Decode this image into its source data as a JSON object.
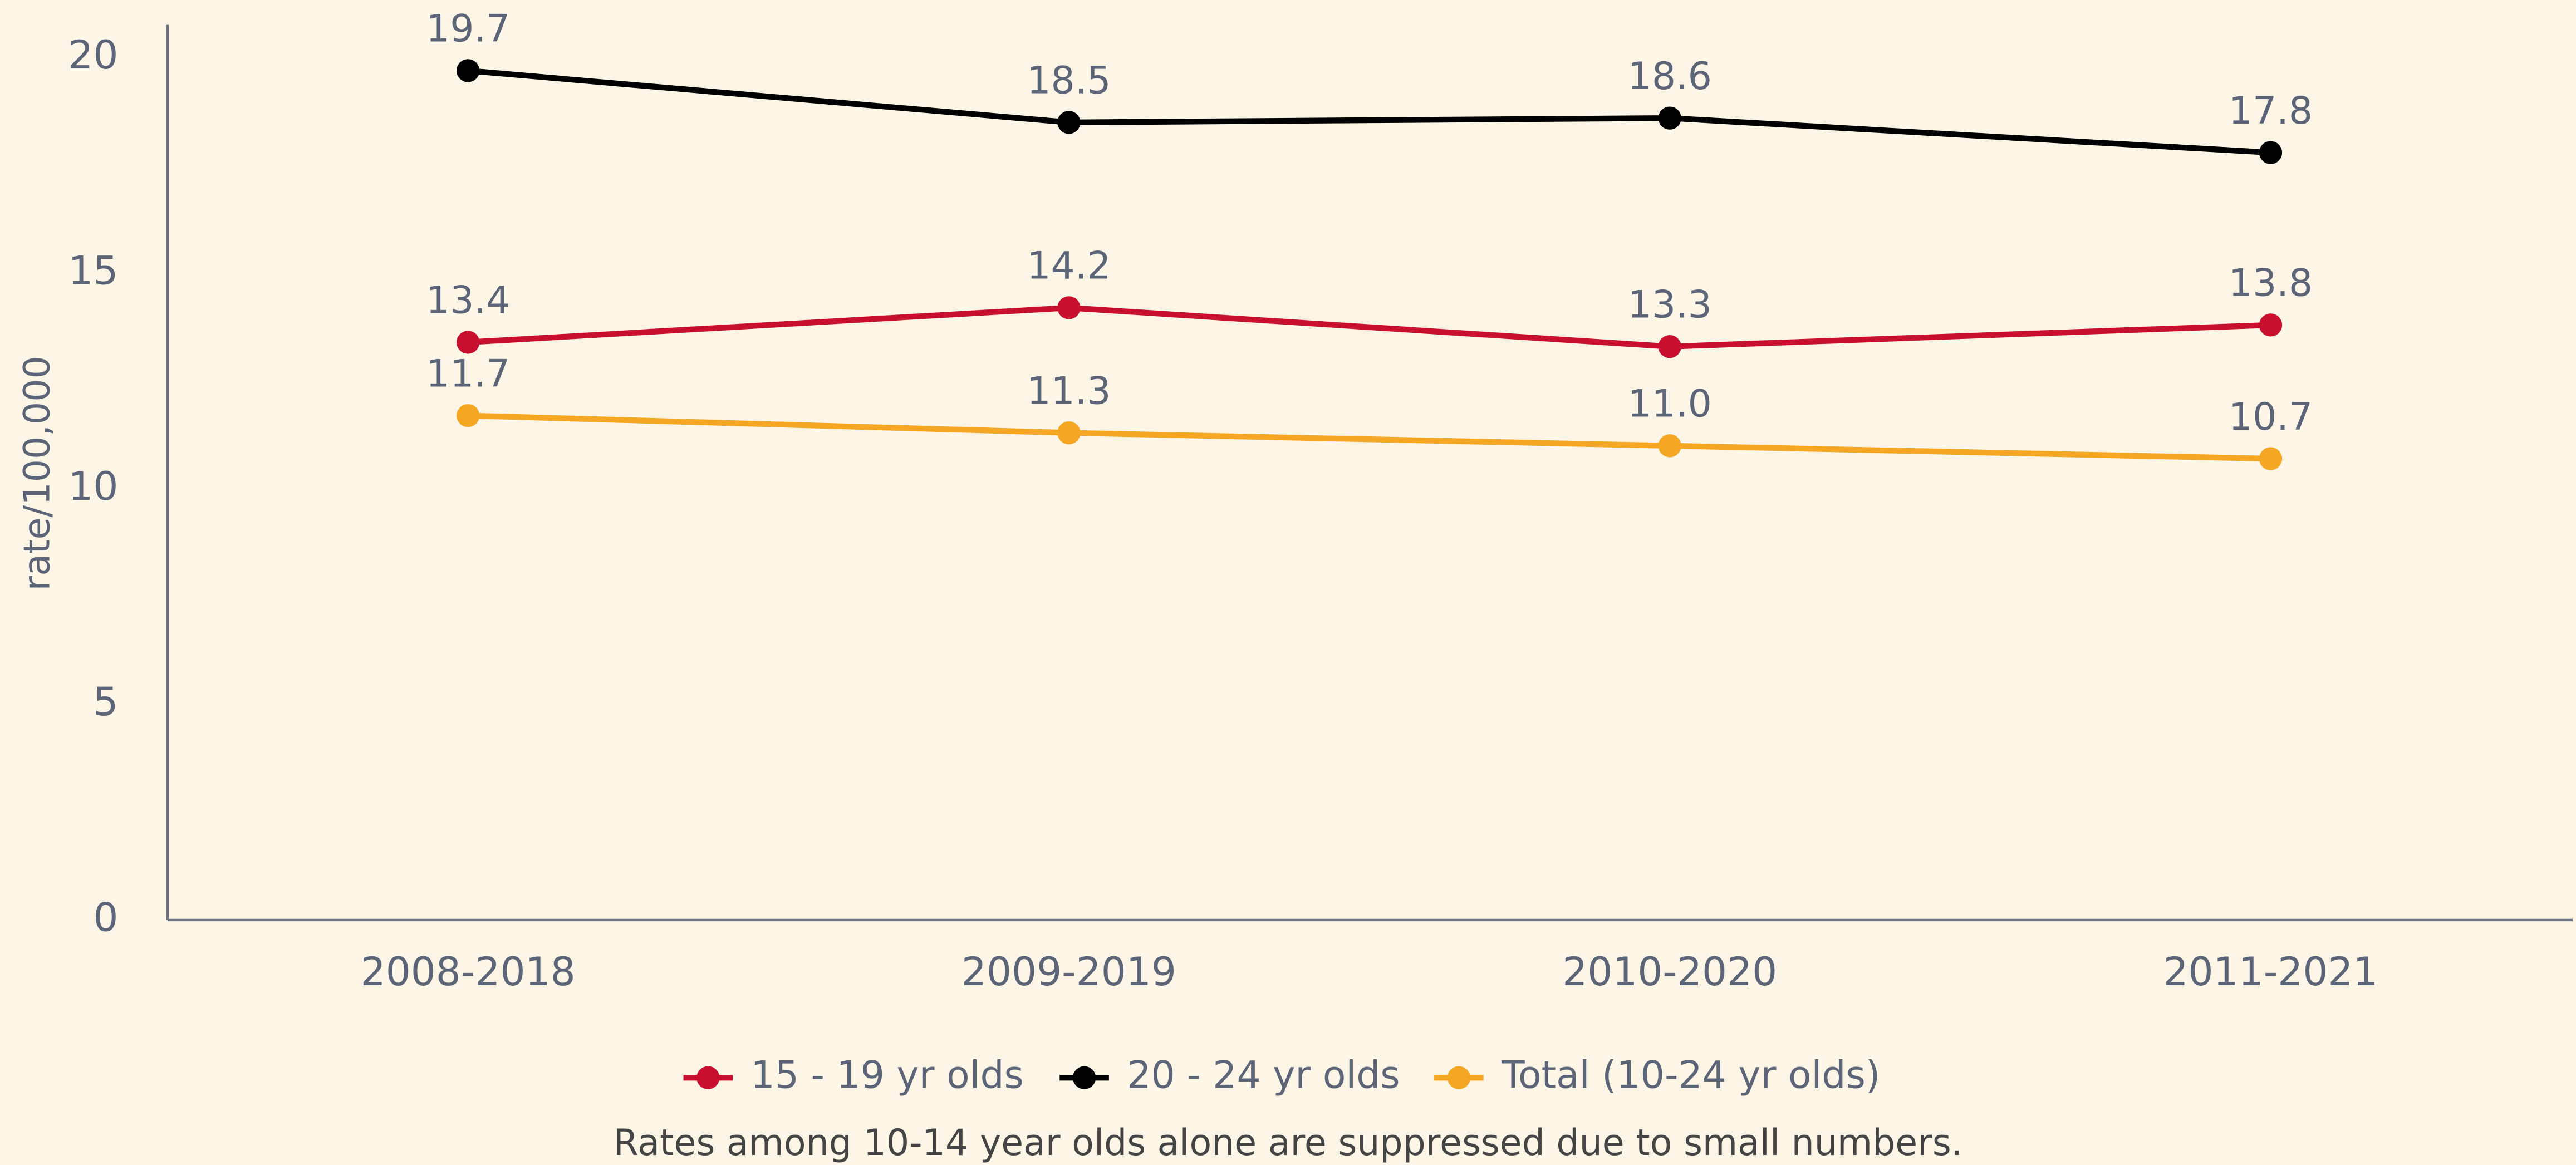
{
  "chart_data": {
    "type": "line",
    "y_label": "rate/100,000",
    "categories": [
      "2008-2018",
      "2009-2019",
      "2010-2020",
      "2011-2021"
    ],
    "series": [
      {
        "name": "15 - 19 yr olds",
        "color": "#c8102e",
        "values": [
          13.4,
          14.2,
          13.3,
          13.8
        ],
        "value_labels": [
          "13.4",
          "14.2",
          "13.3",
          "13.8"
        ]
      },
      {
        "name": "20 - 24 yr olds",
        "color": "#000000",
        "values": [
          19.7,
          18.5,
          18.6,
          17.8
        ],
        "value_labels": [
          "19.7",
          "18.5",
          "18.6",
          "17.8"
        ]
      },
      {
        "name": "Total (10-24 yr olds)",
        "color": "#f5a623",
        "values": [
          11.7,
          11.3,
          11.0,
          10.7
        ],
        "value_labels": [
          "11.7",
          "11.3",
          "11.0",
          "10.7"
        ]
      }
    ],
    "ylim": [
      0,
      20
    ],
    "yticks": [
      0,
      5,
      10,
      15,
      20
    ],
    "grid": false,
    "legend": "bottom",
    "note": "Rates among 10-14 year olds alone are suppressed due to small numbers."
  }
}
